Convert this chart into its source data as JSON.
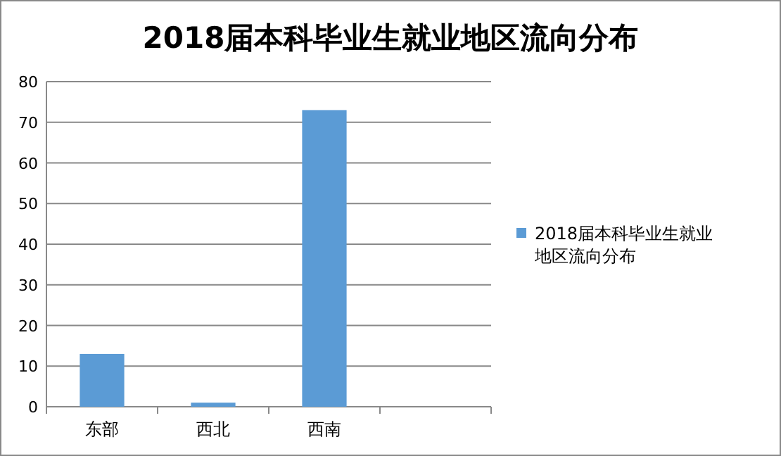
{
  "chart_data": {
    "type": "bar",
    "title": "2018届本科毕业生就业地区流向分布",
    "categories": [
      "东部",
      "西北",
      "西南",
      null
    ],
    "series": [
      {
        "name": "2018届本科毕业生就业地区流向分布",
        "color": "#5b9bd5",
        "values": [
          13,
          1,
          73,
          null
        ]
      }
    ],
    "ylim": [
      0,
      80
    ],
    "yticks": [
      0,
      10,
      20,
      30,
      40,
      50,
      60,
      70,
      80
    ],
    "grid": "y",
    "legend": "right"
  }
}
